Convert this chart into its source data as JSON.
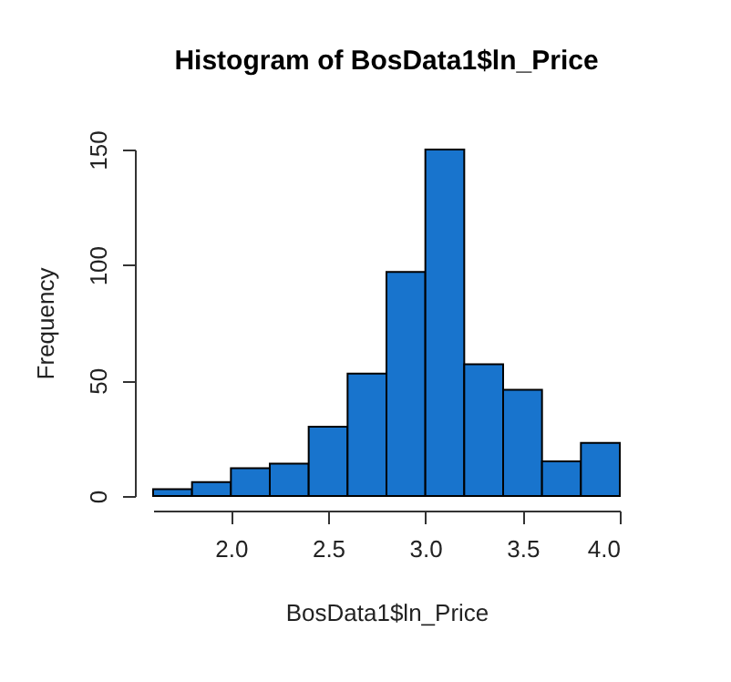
{
  "chart_data": {
    "type": "histogram",
    "title": "Histogram of BosData1$ln_Price",
    "xlabel": "BosData1$ln_Price",
    "ylabel": "Frequency",
    "bins": [
      1.6,
      1.8,
      2.0,
      2.2,
      2.4,
      2.6,
      2.8,
      3.0,
      3.2,
      3.4,
      3.6,
      3.8,
      4.0
    ],
    "values": [
      3,
      6,
      12,
      14,
      30,
      53,
      97,
      150,
      57,
      46,
      15,
      23
    ],
    "color": "#1874cd",
    "xlim": [
      1.6,
      4.0
    ],
    "xticks": [
      {
        "value": 2,
        "label": "2.0"
      },
      {
        "value": 2.5,
        "label": "2.5"
      },
      {
        "value": 3,
        "label": "3.0"
      },
      {
        "value": 3.5,
        "label": "3.5"
      },
      {
        "value": 4,
        "label": "4.0"
      }
    ],
    "ylim": [
      0,
      150
    ],
    "yticks": [
      0,
      50,
      100,
      150
    ],
    "grid": false
  }
}
